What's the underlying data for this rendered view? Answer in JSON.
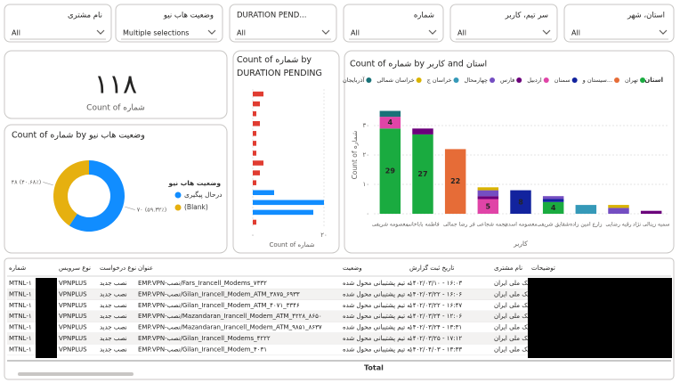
{
  "filters": [
    {
      "label": "نام مشتری",
      "value": "All"
    },
    {
      "label": "وضعیت هاب نیو",
      "value": "Multiple selections"
    },
    {
      "label": "DURATION PEND...",
      "value": "All"
    },
    {
      "label": "شماره",
      "value": "All"
    },
    {
      "label": "سر تیم، کاربر",
      "value": "All"
    },
    {
      "label": "استان، شهر",
      "value": "All"
    }
  ],
  "card": {
    "value": {
      "value": 118,
      "label": "۱۱۸"
    },
    "label": "Count of شماره"
  },
  "chart_data": [
    {
      "type": "pie",
      "title": "Count of شماره by وضعیت هاب نیو",
      "legend_title": "وضعیت هاب نیو",
      "categories": [
        "درحال پیگیری",
        "(Blank)"
      ],
      "values": [
        70,
        48
      ],
      "value_labels": [
        "۷۰ (۵۹.۳۲٪)",
        "۴۸ (۴۰.۶۸٪)"
      ],
      "colors": [
        "#118dff",
        "#e6b00f"
      ],
      "donut": true
    },
    {
      "type": "hbar",
      "title": "Count of شماره by DURATION PENDING",
      "x_label": "Count of شماره",
      "categories": [
        null,
        null,
        null,
        null,
        null,
        null,
        null,
        null,
        null,
        null,
        null,
        null,
        null,
        null
      ],
      "values": [
        3,
        2,
        1,
        2,
        1,
        1,
        1,
        3,
        2,
        1,
        6,
        20,
        17,
        1
      ],
      "colors": [
        "#e03c31",
        "#e03c31",
        "#e03c31",
        "#e03c31",
        "#e03c31",
        "#e03c31",
        "#e03c31",
        "#e03c31",
        "#e03c31",
        "#e03c31",
        "#118dff",
        "#118dff",
        "#118dff",
        "#e03c31"
      ],
      "xlim": [
        0,
        22
      ],
      "xticks": [
        {
          "value": 0,
          "label": "۰"
        },
        {
          "value": 20,
          "label": "۲۰"
        }
      ]
    },
    {
      "type": "stacked_bar",
      "title": "Count of شماره by کاربر and استان",
      "legend_title": "استان",
      "x_label": "کاربر",
      "y_label": "Count of شماره",
      "categories": [
        "معصومه شریفی",
        "فاطمه باباخانی",
        "رضا جمالی",
        "نجمه شجاعی فر",
        "معصومه اسدی",
        "شقایق شریفی",
        "زارع امین زاده",
        "رقیه رضایی",
        "سمیه زینالی نژاد"
      ],
      "series": [
        {
          "name": "تهران",
          "color": "#1aab40",
          "values": [
            29,
            27,
            null,
            null,
            null,
            4,
            null,
            null,
            null
          ]
        },
        {
          "name": "سیستان و...",
          "color": "#e66c37",
          "values": [
            null,
            null,
            22,
            null,
            null,
            null,
            null,
            null,
            null
          ]
        },
        {
          "name": "سمنان",
          "color": "#12239e",
          "values": [
            null,
            null,
            null,
            null,
            8,
            1,
            null,
            null,
            null
          ]
        },
        {
          "name": "اردبیل",
          "color": "#e044a7",
          "values": [
            4,
            null,
            null,
            5,
            null,
            null,
            null,
            null,
            null
          ]
        },
        {
          "name": "فارس",
          "color": "#6b007b",
          "values": [
            null,
            2,
            null,
            1,
            null,
            null,
            null,
            null,
            1
          ]
        },
        {
          "name": "چهارمحال",
          "color": "#744ec2",
          "values": [
            null,
            null,
            null,
            2,
            null,
            1,
            null,
            2,
            null
          ]
        },
        {
          "name": "خراسان ج",
          "color": "#3599b8",
          "values": [
            null,
            null,
            null,
            null,
            null,
            null,
            3,
            null,
            null
          ]
        },
        {
          "name": "خراسان شمالی",
          "color": "#d9b300",
          "values": [
            null,
            null,
            null,
            1,
            null,
            null,
            null,
            1,
            null
          ]
        },
        {
          "name": "آذربایجان",
          "color": "#197278",
          "values": [
            2,
            null,
            null,
            null,
            null,
            null,
            null,
            null,
            null
          ]
        }
      ],
      "ylim": [
        0,
        40
      ],
      "yticks": [
        {
          "value": 0,
          "label": "۰"
        },
        {
          "value": 10,
          "label": "۱۰"
        },
        {
          "value": 20,
          "label": "۲۰"
        },
        {
          "value": 30,
          "label": "۳۰"
        }
      ]
    }
  ],
  "table": {
    "columns": [
      "شماره",
      "نوع سرویس",
      "نوع درخواست",
      "عنوان",
      "وضعیت",
      "تاریخ ثبت گزارش",
      "نام مشتری",
      "توضیحات"
    ],
    "rows": [
      [
        "MTNL-۱",
        "VPNPLUS",
        "نصب جدید",
        "EMP.VPN-نصب/Fars_Irancell_Modems_۷۳۳۲",
        "به تیم پشتیبانی محول شده",
        "۱۴۰۲/۰۳/۱۰ - ۱۶:۰۳",
        "بانک ملی ایران"
      ],
      [
        "MTNL-۱",
        "VPNPLUS",
        "نصب جدید",
        "EMP.VPN-نصب/Gilan_Irancell_Modem_ATM_۳۸۷۵_۶۹۳۳",
        "به تیم پشتیبانی محول شده",
        "۱۴۰۲/۰۳/۲۲ - ۱۶:۰۶",
        "بانک ملی ایران"
      ],
      [
        "MTNL-۱",
        "VPNPLUS",
        "نصب جدید",
        "EMP.VPN-نصب/Gilan_Irancell_Modem_ATM_۴۰۷۱_۳۳۴۶",
        "به تیم پشتیبانی محول شده",
        "۱۴۰۲/۰۳/۲۲ - ۱۶:۴۷",
        "بانک ملی ایران"
      ],
      [
        "MTNL-۱",
        "VPNPLUS",
        "نصب جدید",
        "EMP.VPN-نصب/Mazandaran_Irancell_Modem_ATM_۴۲۲۸_۸۶۵۰",
        "به تیم پشتیبانی محول شده",
        "۱۴۰۲/۰۳/۲۴ - ۱۲:۰۶",
        "بانک ملی ایران"
      ],
      [
        "MTNL-۱",
        "VPNPLUS",
        "نصب جدید",
        "EMP.VPN-نصب/Mazandaran_Irancell_Modem_ATM_۹۸۵۱_۸۶۳۷",
        "به تیم پشتیبانی محول شده",
        "۱۴۰۲/۰۳/۲۴ - ۱۳:۳۱",
        "بانک ملی ایران"
      ],
      [
        "MTNL-۱",
        "VPNPLUS",
        "نصب جدید",
        "EMP.VPN-نصب/Gilan_Irancell_Modems_۴۲۲۲",
        "به تیم پشتیبانی محول شده",
        "۱۴۰۲/۰۳/۲۵ - ۱۷:۱۲",
        "بانک ملی ایران"
      ],
      [
        "MTNL-۱",
        "VPNPLUS",
        "نصب جدید",
        "EMP.VPN-نصب/Gilan_Irancell_Modem_۴۰۳۱",
        "به تیم پشتیبانی محول شده",
        "۱۴۰۲/۰۴/۰۳ - ۱۳:۳۳",
        "بانک ملی ایران"
      ]
    ],
    "footer": "Total"
  }
}
